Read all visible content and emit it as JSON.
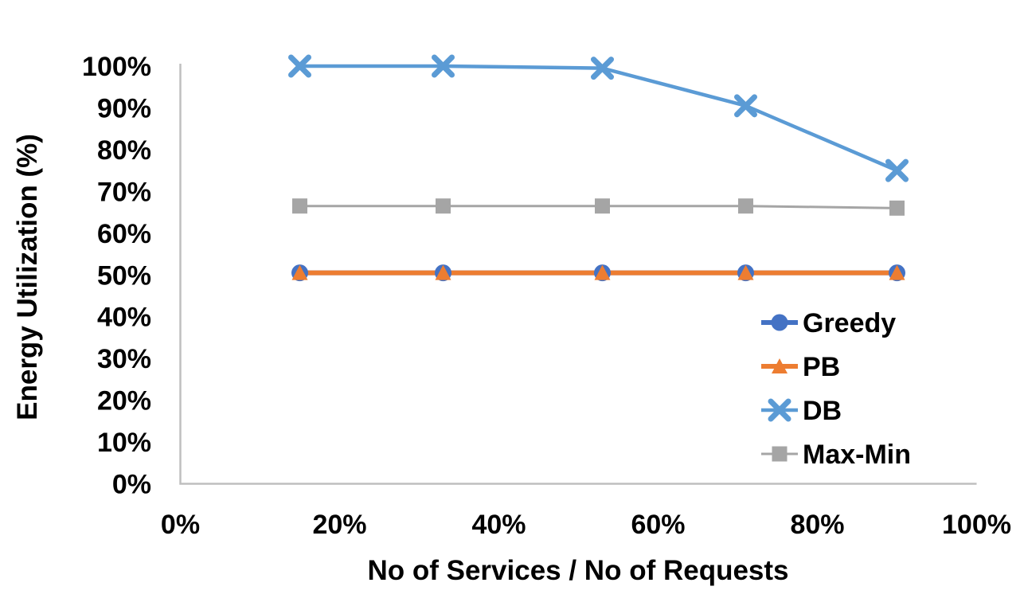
{
  "chart_data": {
    "type": "line",
    "title": "",
    "xlabel": "No of Services / No of Requests",
    "ylabel": "Energy Utilization (%)",
    "xlim": [
      0,
      100
    ],
    "ylim": [
      0,
      100
    ],
    "grid": false,
    "legend_position": "inside-right-middle",
    "axis_color": "#BFBFBF",
    "text_color": "#000000",
    "x_ticks": [
      {
        "label": "0%",
        "value": 0
      },
      {
        "label": "20%",
        "value": 20
      },
      {
        "label": "40%",
        "value": 40
      },
      {
        "label": "60%",
        "value": 60
      },
      {
        "label": "80%",
        "value": 80
      },
      {
        "label": "100%",
        "value": 100
      }
    ],
    "y_ticks": [
      {
        "label": "0%",
        "value": 0
      },
      {
        "label": "10%",
        "value": 10
      },
      {
        "label": "20%",
        "value": 20
      },
      {
        "label": "30%",
        "value": 30
      },
      {
        "label": "40%",
        "value": 40
      },
      {
        "label": "50%",
        "value": 50
      },
      {
        "label": "60%",
        "value": 60
      },
      {
        "label": "70%",
        "value": 70
      },
      {
        "label": "80%",
        "value": 80
      },
      {
        "label": "90%",
        "value": 90
      },
      {
        "label": "100%",
        "value": 100
      }
    ],
    "x": [
      15,
      33,
      53,
      71,
      90
    ],
    "series": [
      {
        "name": "Greedy",
        "marker": "circle",
        "color": "#4472C4",
        "line_width": 6,
        "values": [
          50.5,
          50.5,
          50.5,
          50.5,
          50.5
        ]
      },
      {
        "name": "PB",
        "marker": "triangle",
        "color": "#ED7D31",
        "line_width": 6,
        "values": [
          50.5,
          50.5,
          50.5,
          50.5,
          50.5
        ]
      },
      {
        "name": "DB",
        "marker": "x",
        "color": "#5B9BD5",
        "line_width": 4.5,
        "values": [
          100,
          100,
          99.5,
          90.5,
          75
        ]
      },
      {
        "name": "Max-Min",
        "marker": "square",
        "color": "#A5A5A5",
        "line_width": 3,
        "values": [
          66.5,
          66.5,
          66.5,
          66.5,
          66
        ]
      }
    ]
  }
}
